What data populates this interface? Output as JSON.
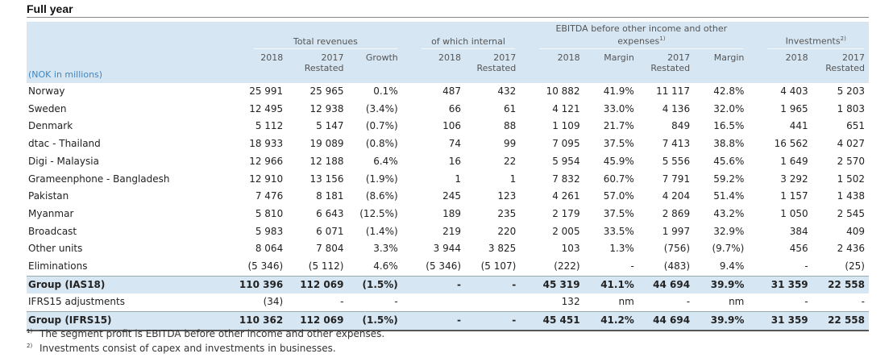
{
  "title": "Full year",
  "header": {
    "unit_label": "(NOK in millions)",
    "groups": [
      {
        "label": "Total revenues",
        "columns": [
          [
            "2018"
          ],
          [
            "2017",
            "Restated"
          ],
          [
            "Growth"
          ]
        ]
      },
      {
        "label": "of which internal",
        "columns": [
          [
            "2018"
          ],
          [
            "2017",
            "Restated"
          ]
        ]
      },
      {
        "label": "EBITDA before other income and other expenses",
        "note": "1)",
        "columns": [
          [
            "2018"
          ],
          [
            "Margin"
          ],
          [
            "2017",
            "Restated"
          ],
          [
            "Margin"
          ]
        ]
      },
      {
        "label": "Investments",
        "note": "2)",
        "columns": [
          [
            "2018"
          ],
          [
            "2017",
            "Restated"
          ]
        ]
      }
    ]
  },
  "table": {
    "rows": [
      {
        "label": "Norway",
        "cells": [
          "25 991",
          "25 965",
          "0.1%",
          "487",
          "432",
          "10 882",
          "41.9%",
          "11 117",
          "42.8%",
          "4 403",
          "5 203"
        ]
      },
      {
        "label": "Sweden",
        "cells": [
          "12 495",
          "12 938",
          "(3.4%)",
          "66",
          "61",
          "4 121",
          "33.0%",
          "4 136",
          "32.0%",
          "1 965",
          "1 803"
        ]
      },
      {
        "label": "Denmark",
        "cells": [
          "5 112",
          "5 147",
          "(0.7%)",
          "106",
          "88",
          "1 109",
          "21.7%",
          "849",
          "16.5%",
          "441",
          "651"
        ]
      },
      {
        "label": "dtac - Thailand",
        "cells": [
          "18 933",
          "19 089",
          "(0.8%)",
          "74",
          "99",
          "7 095",
          "37.5%",
          "7 413",
          "38.8%",
          "16 562",
          "4 027"
        ]
      },
      {
        "label": "Digi - Malaysia",
        "cells": [
          "12 966",
          "12 188",
          "6.4%",
          "16",
          "22",
          "5 954",
          "45.9%",
          "5 556",
          "45.6%",
          "1 649",
          "2 570"
        ]
      },
      {
        "label": "Grameenphone - Bangladesh",
        "cells": [
          "12 910",
          "13 156",
          "(1.9%)",
          "1",
          "1",
          "7 832",
          "60.7%",
          "7 791",
          "59.2%",
          "3 292",
          "1 502"
        ]
      },
      {
        "label": "Pakistan",
        "cells": [
          "7 476",
          "8 181",
          "(8.6%)",
          "245",
          "123",
          "4 261",
          "57.0%",
          "4 204",
          "51.4%",
          "1 157",
          "1 438"
        ]
      },
      {
        "label": "Myanmar",
        "cells": [
          "5 810",
          "6 643",
          "(12.5%)",
          "189",
          "235",
          "2 179",
          "37.5%",
          "2 869",
          "43.2%",
          "1 050",
          "2 545"
        ]
      },
      {
        "label": "Broadcast",
        "cells": [
          "5 983",
          "6 071",
          "(1.4%)",
          "219",
          "220",
          "2 005",
          "33.5%",
          "1 997",
          "32.9%",
          "384",
          "409"
        ]
      },
      {
        "label": "Other units",
        "cells": [
          "8 064",
          "7 804",
          "3.3%",
          "3 944",
          "3 825",
          "103",
          "1.3%",
          "(756)",
          "(9.7%)",
          "456",
          "2 436"
        ]
      },
      {
        "label": "Eliminations",
        "cells": [
          "(5 346)",
          "(5 112)",
          "4.6%",
          "(5 346)",
          "(5 107)",
          "(222)",
          "-",
          "(483)",
          "9.4%",
          "-",
          "(25)"
        ]
      },
      {
        "label": "Group (IAS18)",
        "bold": true,
        "cells": [
          "110 396",
          "112 069",
          "(1.5%)",
          "-",
          "-",
          "45 319",
          "41.1%",
          "44 694",
          "39.9%",
          "31 359",
          "22 558"
        ]
      },
      {
        "label": "IFRS15 adjustments",
        "cells": [
          "(34)",
          "-",
          "-",
          null,
          null,
          "132",
          "nm",
          "-",
          "nm",
          "-",
          "-"
        ]
      },
      {
        "label": "Group (IFRS15)",
        "bold": true,
        "cells": [
          "110 362",
          "112 069",
          "(1.5%)",
          "-",
          "-",
          "45 451",
          "41.2%",
          "44 694",
          "39.9%",
          "31 359",
          "22 558"
        ]
      }
    ]
  },
  "footnotes": [
    {
      "marker": "1)",
      "text": "The segment profit is EBITDA before other income and other expenses."
    },
    {
      "marker": "2)",
      "text": "Investments consist of capex and investments in businesses."
    }
  ]
}
